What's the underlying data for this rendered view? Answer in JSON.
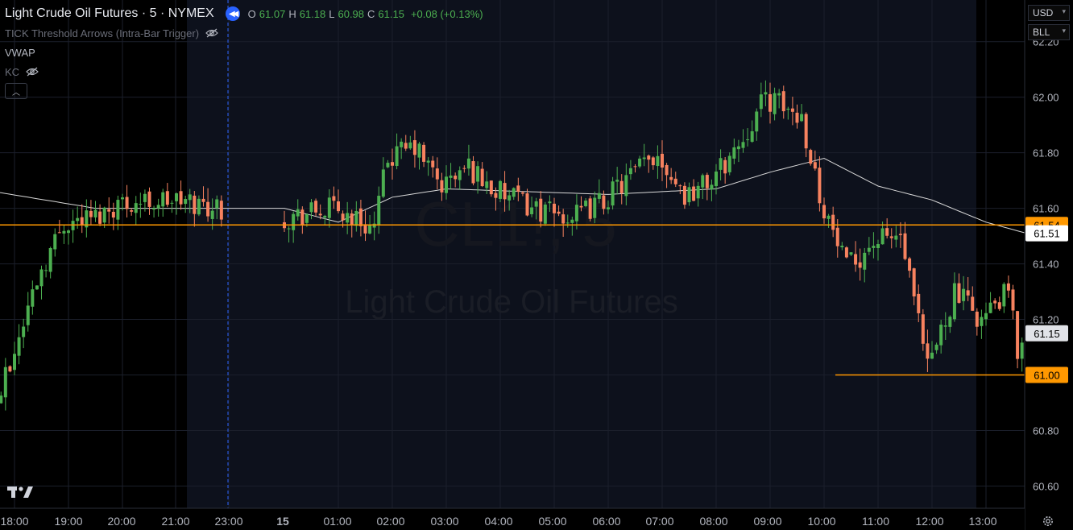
{
  "symbol": {
    "title": "Light Crude Oil Futures · 5 · NYMEX",
    "watermark_main": "CL1!, 5",
    "watermark_sub": "Light Crude Oil Futures"
  },
  "ohlc": {
    "o_key": "O",
    "o_val": "61.07",
    "h_key": "H",
    "h_val": "61.18",
    "l_key": "L",
    "l_val": "60.98",
    "c_key": "C",
    "c_val": "61.15",
    "change": "+0.08 (+0.13%)"
  },
  "indicators": {
    "tick": "TICK Threshold Arrows (Intra-Bar Trigger)",
    "vwap": "VWAP",
    "kc": "KC"
  },
  "icons": {
    "replay": "rewind-icon",
    "visibility": "eye-off-icon",
    "collapse": "chevron-up-icon",
    "logo": "tradingview-logo",
    "settings": "gear-icon"
  },
  "price_scale": {
    "currency": "USD",
    "unit": "BLL",
    "ticks": [
      "62.20",
      "62.00",
      "61.80",
      "61.60",
      "61.40",
      "61.20",
      "61.00",
      "60.80",
      "60.60"
    ],
    "labels": [
      {
        "text": "61.54",
        "price": 61.54,
        "bg": "#ff9800",
        "fg": "#000000"
      },
      {
        "text": "61.51",
        "price": 61.51,
        "bg": "#ffffff",
        "fg": "#000000"
      },
      {
        "text": "61.15",
        "price": 61.15,
        "bg": "#e1e3e8",
        "fg": "#000000"
      },
      {
        "text": "61.00",
        "price": 61.0,
        "bg": "#ff9800",
        "fg": "#000000"
      }
    ]
  },
  "time_axis": {
    "labels": [
      "18:00",
      "19:00",
      "20:00",
      "21:00",
      "23:00",
      "15",
      "01:00",
      "02:00",
      "03:00",
      "04:00",
      "05:00",
      "06:00",
      "07:00",
      "08:00",
      "09:00",
      "10:00",
      "11:00",
      "12:00",
      "13:00"
    ]
  },
  "colors": {
    "up": "#4caf50",
    "down": "#f7825f",
    "hline": "#ff9800",
    "vwap": "#d8d8d8",
    "session_bg": "#0d111c",
    "grid": "#1b1f2b",
    "cursor_line": "#2962ff"
  },
  "chart_data": {
    "type": "candlestick",
    "interval": "5 min",
    "y_range": [
      60.52,
      62.35
    ],
    "horizontal_lines": [
      61.54,
      61.0
    ],
    "last_price": 61.15,
    "vwap_last": 61.51,
    "anchors": [
      {
        "t": "17:00",
        "p": 61.07
      },
      {
        "t": "17:40",
        "p": 60.85
      },
      {
        "t": "18:00",
        "p": 61.03
      },
      {
        "t": "18:30",
        "p": 61.35
      },
      {
        "t": "19:00",
        "p": 61.55
      },
      {
        "t": "19:35",
        "p": 61.57
      },
      {
        "t": "20:00",
        "p": 61.62
      },
      {
        "t": "21:00",
        "p": 61.63
      },
      {
        "t": "22:00",
        "p": 61.6
      },
      {
        "t": "23:00",
        "p": 61.56
      },
      {
        "t": "00:00",
        "p": 61.6
      },
      {
        "t": "00:45",
        "p": 61.53
      },
      {
        "t": "01:00",
        "p": 61.78
      },
      {
        "t": "01:30",
        "p": 61.82
      },
      {
        "t": "02:00",
        "p": 61.68
      },
      {
        "t": "02:30",
        "p": 61.75
      },
      {
        "t": "03:00",
        "p": 61.66
      },
      {
        "t": "04:00",
        "p": 61.58
      },
      {
        "t": "04:30",
        "p": 61.57
      },
      {
        "t": "05:00",
        "p": 61.63
      },
      {
        "t": "06:00",
        "p": 61.8
      },
      {
        "t": "06:30",
        "p": 61.65
      },
      {
        "t": "07:00",
        "p": 61.7
      },
      {
        "t": "07:30",
        "p": 61.83
      },
      {
        "t": "08:00",
        "p": 62.0
      },
      {
        "t": "08:40",
        "p": 61.93
      },
      {
        "t": "09:00",
        "p": 61.65
      },
      {
        "t": "09:30",
        "p": 61.38
      },
      {
        "t": "10:00",
        "p": 61.48
      },
      {
        "t": "10:30",
        "p": 61.5
      },
      {
        "t": "11:00",
        "p": 61.02
      },
      {
        "t": "11:30",
        "p": 61.3
      },
      {
        "t": "12:00",
        "p": 61.2
      },
      {
        "t": "12:30",
        "p": 61.3
      },
      {
        "t": "12:40",
        "p": 61.08
      },
      {
        "t": "12:45",
        "p": 61.15
      }
    ],
    "vwap_anchors": [
      {
        "t": "17:00",
        "p": 61.68
      },
      {
        "t": "19:30",
        "p": 61.6
      },
      {
        "t": "23:00",
        "p": 61.6
      },
      {
        "t": "00:00",
        "p": 61.55
      },
      {
        "t": "01:00",
        "p": 61.64
      },
      {
        "t": "02:00",
        "p": 61.67
      },
      {
        "t": "05:00",
        "p": 61.65
      },
      {
        "t": "07:00",
        "p": 61.67
      },
      {
        "t": "08:00",
        "p": 61.73
      },
      {
        "t": "09:00",
        "p": 61.78
      },
      {
        "t": "10:00",
        "p": 61.68
      },
      {
        "t": "11:00",
        "p": 61.63
      },
      {
        "t": "12:00",
        "p": 61.55
      },
      {
        "t": "12:45",
        "p": 61.51
      }
    ]
  }
}
